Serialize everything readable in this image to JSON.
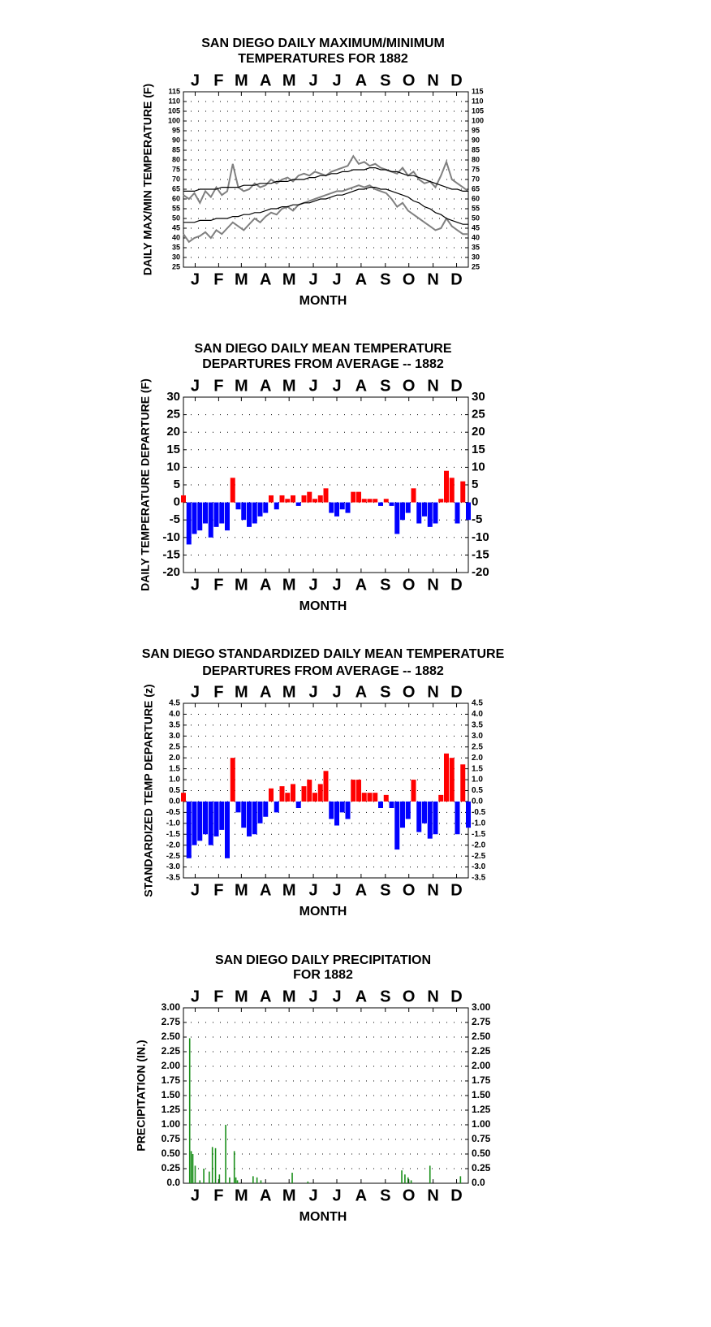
{
  "chart_data": [
    {
      "type": "line",
      "title": [
        "SAN DIEGO DAILY MAXIMUM/MINIMUM",
        "TEMPERATURES FOR 1882"
      ],
      "x_label": "MONTH",
      "y_label": "DAILY MAX/MIN TEMPERATURE (F)",
      "xlim": [
        1,
        365
      ],
      "xticks": [
        {
          "value": 16,
          "label": "J"
        },
        {
          "value": 46,
          "label": "F"
        },
        {
          "value": 75,
          "label": "M"
        },
        {
          "value": 106,
          "label": "A"
        },
        {
          "value": 136,
          "label": "M"
        },
        {
          "value": 167,
          "label": "J"
        },
        {
          "value": 197,
          "label": "J"
        },
        {
          "value": 228,
          "label": "A"
        },
        {
          "value": 259,
          "label": "S"
        },
        {
          "value": 289,
          "label": "O"
        },
        {
          "value": 320,
          "label": "N"
        },
        {
          "value": 350,
          "label": "D"
        }
      ],
      "ylim": [
        25,
        115
      ],
      "yticks": [
        25,
        30,
        35,
        40,
        45,
        50,
        55,
        60,
        65,
        70,
        75,
        80,
        85,
        90,
        95,
        100,
        105,
        110,
        115
      ],
      "grid": true,
      "x": [
        1,
        8,
        15,
        22,
        29,
        36,
        43,
        50,
        57,
        64,
        71,
        78,
        85,
        92,
        99,
        106,
        113,
        120,
        127,
        134,
        141,
        148,
        155,
        162,
        169,
        176,
        183,
        190,
        197,
        204,
        211,
        218,
        225,
        232,
        239,
        246,
        253,
        260,
        267,
        274,
        281,
        288,
        295,
        302,
        309,
        316,
        323,
        330,
        337,
        344,
        351,
        358,
        365
      ],
      "series": [
        {
          "color": "#808080",
          "values": [
            62,
            60,
            63,
            58,
            64,
            61,
            66,
            62,
            64,
            78,
            66,
            64,
            65,
            68,
            66,
            67,
            70,
            68,
            70,
            71,
            69,
            72,
            73,
            72,
            74,
            73,
            72,
            74,
            75,
            76,
            77,
            82,
            78,
            79,
            77,
            78,
            76,
            75,
            74,
            73,
            76,
            72,
            74,
            70,
            68,
            69,
            66,
            72,
            79,
            70,
            68,
            66,
            64
          ]
        },
        {
          "color": "#808080",
          "values": [
            42,
            38,
            40,
            41,
            43,
            40,
            44,
            42,
            45,
            48,
            46,
            44,
            47,
            50,
            48,
            51,
            53,
            52,
            55,
            56,
            54,
            57,
            58,
            59,
            60,
            61,
            62,
            63,
            64,
            64,
            65,
            66,
            67,
            66,
            67,
            65,
            64,
            63,
            60,
            56,
            58,
            54,
            52,
            50,
            48,
            46,
            44,
            45,
            50,
            46,
            44,
            42,
            42
          ]
        },
        {
          "color": "#000000",
          "values": [
            64,
            64,
            64,
            65,
            65,
            65,
            65,
            66,
            66,
            66,
            66,
            67,
            67,
            67,
            68,
            68,
            68,
            69,
            69,
            69,
            70,
            70,
            70,
            71,
            71,
            72,
            72,
            73,
            73,
            74,
            74,
            75,
            75,
            75,
            76,
            76,
            75,
            75,
            74,
            74,
            73,
            72,
            72,
            71,
            70,
            69,
            68,
            67,
            66,
            65,
            65,
            64,
            64
          ]
        },
        {
          "color": "#000000",
          "values": [
            48,
            48,
            48,
            49,
            49,
            49,
            50,
            50,
            50,
            51,
            51,
            52,
            52,
            53,
            53,
            54,
            55,
            55,
            56,
            56,
            57,
            57,
            58,
            58,
            59,
            60,
            60,
            61,
            62,
            62,
            63,
            64,
            65,
            65,
            66,
            66,
            65,
            65,
            64,
            63,
            62,
            61,
            59,
            58,
            56,
            55,
            53,
            52,
            50,
            49,
            48,
            47,
            47
          ]
        }
      ]
    },
    {
      "type": "bar",
      "title": [
        "SAN DIEGO DAILY MEAN TEMPERATURE",
        "DEPARTURES FROM AVERAGE -- 1882"
      ],
      "x_label": "MONTH",
      "y_label": "DAILY TEMPERATURE DEPARTURE (F)",
      "xlim": [
        1,
        365
      ],
      "xticks": [
        {
          "value": 16,
          "label": "J"
        },
        {
          "value": 46,
          "label": "F"
        },
        {
          "value": 75,
          "label": "M"
        },
        {
          "value": 106,
          "label": "A"
        },
        {
          "value": 136,
          "label": "M"
        },
        {
          "value": 167,
          "label": "J"
        },
        {
          "value": 197,
          "label": "J"
        },
        {
          "value": 228,
          "label": "A"
        },
        {
          "value": 259,
          "label": "S"
        },
        {
          "value": 289,
          "label": "O"
        },
        {
          "value": 320,
          "label": "N"
        },
        {
          "value": 350,
          "label": "D"
        }
      ],
      "ylim": [
        -20,
        30
      ],
      "yticks": [
        -20,
        -15,
        -10,
        -5,
        0,
        5,
        10,
        15,
        20,
        25,
        30
      ],
      "grid": true,
      "positive_color": "#ff0000",
      "negative_color": "#0000ff",
      "x": [
        1,
        8,
        15,
        22,
        29,
        36,
        43,
        50,
        57,
        64,
        71,
        78,
        85,
        92,
        99,
        106,
        113,
        120,
        127,
        134,
        141,
        148,
        155,
        162,
        169,
        176,
        183,
        190,
        197,
        204,
        211,
        218,
        225,
        232,
        239,
        246,
        253,
        260,
        267,
        274,
        281,
        288,
        295,
        302,
        309,
        316,
        323,
        330,
        337,
        344,
        351,
        358,
        365
      ],
      "values": [
        2,
        -12,
        -9,
        -8,
        -6,
        -10,
        -7,
        -6,
        -8,
        7,
        -2,
        -5,
        -7,
        -6,
        -4,
        -3,
        2,
        -2,
        2,
        1,
        2,
        -1,
        2,
        3,
        1,
        2,
        4,
        -3,
        -4,
        -2,
        -3,
        3,
        3,
        1,
        1,
        1,
        -1,
        1,
        -1,
        -9,
        -5,
        -3,
        4,
        -6,
        -4,
        -7,
        -6,
        1,
        9,
        7,
        -6,
        6,
        -5
      ]
    },
    {
      "type": "bar",
      "title": [
        "SAN DIEGO STANDARDIZED DAILY MEAN TEMPERATURE",
        "DEPARTURES FROM AVERAGE -- 1882"
      ],
      "x_label": "MONTH",
      "y_label": "STANDARDIZED TEMP DEPARTURE (z)",
      "xlim": [
        1,
        365
      ],
      "xticks": [
        {
          "value": 16,
          "label": "J"
        },
        {
          "value": 46,
          "label": "F"
        },
        {
          "value": 75,
          "label": "M"
        },
        {
          "value": 106,
          "label": "A"
        },
        {
          "value": 136,
          "label": "M"
        },
        {
          "value": 167,
          "label": "J"
        },
        {
          "value": 197,
          "label": "J"
        },
        {
          "value": 228,
          "label": "A"
        },
        {
          "value": 259,
          "label": "S"
        },
        {
          "value": 289,
          "label": "O"
        },
        {
          "value": 320,
          "label": "N"
        },
        {
          "value": 350,
          "label": "D"
        }
      ],
      "ylim": [
        -3.5,
        4.5
      ],
      "yticks": [
        -3.5,
        {
          "value": -3,
          "label": "-3.0"
        },
        -2.5,
        {
          "value": -2,
          "label": "-2.0"
        },
        -1.5,
        {
          "value": -1,
          "label": "-1.0"
        },
        -0.5,
        {
          "value": 0,
          "label": "0.0"
        },
        0.5,
        {
          "value": 1,
          "label": "1.0"
        },
        1.5,
        {
          "value": 2,
          "label": "2.0"
        },
        2.5,
        {
          "value": 3,
          "label": "3.0"
        },
        3.5,
        {
          "value": 4,
          "label": "4.0"
        },
        4.5
      ],
      "grid": true,
      "positive_color": "#ff0000",
      "negative_color": "#0000ff",
      "x": [
        1,
        8,
        15,
        22,
        29,
        36,
        43,
        50,
        57,
        64,
        71,
        78,
        85,
        92,
        99,
        106,
        113,
        120,
        127,
        134,
        141,
        148,
        155,
        162,
        169,
        176,
        183,
        190,
        197,
        204,
        211,
        218,
        225,
        232,
        239,
        246,
        253,
        260,
        267,
        274,
        281,
        288,
        295,
        302,
        309,
        316,
        323,
        330,
        337,
        344,
        351,
        358,
        365
      ],
      "values": [
        0.4,
        -2.6,
        -2.0,
        -1.8,
        -1.5,
        -2.0,
        -1.6,
        -1.3,
        -2.6,
        2.0,
        -0.5,
        -1.2,
        -1.6,
        -1.5,
        -1.0,
        -0.7,
        0.6,
        -0.5,
        0.7,
        0.4,
        0.8,
        -0.3,
        0.7,
        1.0,
        0.4,
        0.8,
        1.4,
        -0.8,
        -1.1,
        -0.5,
        -0.8,
        1.0,
        1.0,
        0.4,
        0.4,
        0.4,
        -0.3,
        0.3,
        -0.3,
        -2.2,
        -1.2,
        -0.8,
        1.0,
        -1.4,
        -1.0,
        -1.7,
        -1.5,
        0.3,
        2.2,
        2.0,
        -1.5,
        1.7,
        -1.2
      ]
    },
    {
      "type": "bar",
      "title": [
        "SAN DIEGO DAILY PRECIPITATION",
        "FOR 1882"
      ],
      "x_label": "MONTH",
      "y_label": "PRECIPITATION (IN.)",
      "xlim": [
        1,
        365
      ],
      "xticks": [
        {
          "value": 16,
          "label": "J"
        },
        {
          "value": 46,
          "label": "F"
        },
        {
          "value": 75,
          "label": "M"
        },
        {
          "value": 106,
          "label": "A"
        },
        {
          "value": 136,
          "label": "M"
        },
        {
          "value": 167,
          "label": "J"
        },
        {
          "value": 197,
          "label": "J"
        },
        {
          "value": 228,
          "label": "A"
        },
        {
          "value": 259,
          "label": "S"
        },
        {
          "value": 289,
          "label": "O"
        },
        {
          "value": 320,
          "label": "N"
        },
        {
          "value": 350,
          "label": "D"
        }
      ],
      "ylim": [
        0,
        3
      ],
      "yticks": [
        {
          "value": 0,
          "label": "0.0"
        },
        0.25,
        {
          "value": 0.5,
          "label": "0.50"
        },
        0.75,
        {
          "value": 1,
          "label": "1.00"
        },
        1.25,
        {
          "value": 1.5,
          "label": "1.50"
        },
        1.75,
        {
          "value": 2,
          "label": "2.00"
        },
        2.25,
        {
          "value": 2.5,
          "label": "2.50"
        },
        2.75,
        {
          "value": 3,
          "label": "3.00"
        }
      ],
      "grid": true,
      "color": "#1a8f1a",
      "x": [
        9,
        11,
        13,
        16,
        22,
        27,
        34,
        38,
        42,
        47,
        55,
        60,
        66,
        68,
        70,
        90,
        95,
        100,
        140,
        160,
        280,
        284,
        288,
        292,
        316,
        355
      ],
      "values": [
        2.48,
        0.55,
        0.5,
        0.3,
        0.05,
        0.25,
        0.2,
        0.62,
        0.6,
        0.15,
        1.0,
        0.1,
        0.55,
        0.1,
        0.05,
        0.12,
        0.1,
        0.05,
        0.18,
        0.03,
        0.22,
        0.15,
        0.1,
        0.05,
        0.3,
        0.12
      ]
    }
  ]
}
